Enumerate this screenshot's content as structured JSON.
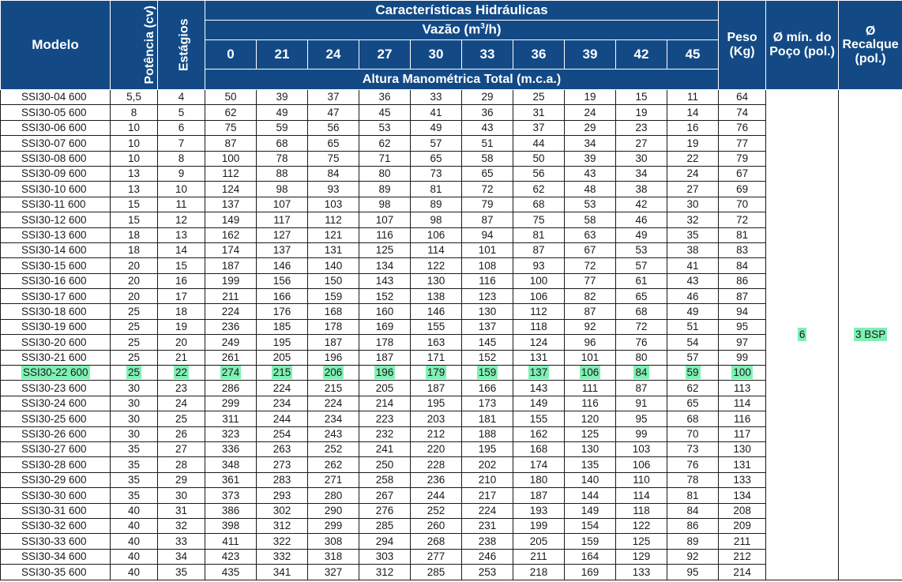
{
  "header": {
    "model": "Modelo",
    "power": "Potência (cv)",
    "stages": "Estágios",
    "hydraulic": "Características Hidráulicas",
    "flow_prefix": "Vazão (m",
    "flow_sup": "3",
    "flow_suffix": "/h)",
    "flows": [
      "0",
      "21",
      "24",
      "27",
      "30",
      "33",
      "36",
      "39",
      "42",
      "45"
    ],
    "head": "Altura Manométrica Total (m.c.a.)",
    "weight_line1": "Peso",
    "weight_line2": "(Kg)",
    "well_line1": "Ø mín. do",
    "well_line2": "Poço (pol.)",
    "outlet_line1": "Ø",
    "outlet_line2": "Recalque",
    "outlet_line3": "(pol.)"
  },
  "merged": {
    "well_diameter": "6",
    "outlet": "3 BSP"
  },
  "highlight_model": "SSI30-22 600",
  "highlight_color": "#7ff0b4",
  "header_color": "#134a86",
  "rows": [
    [
      "SSI30-04 600",
      "5,5",
      "4",
      "50",
      "39",
      "37",
      "36",
      "33",
      "29",
      "25",
      "19",
      "15",
      "11",
      "64"
    ],
    [
      "SSI30-05 600",
      "8",
      "5",
      "62",
      "49",
      "47",
      "45",
      "41",
      "36",
      "31",
      "24",
      "19",
      "14",
      "74"
    ],
    [
      "SSI30-06 600",
      "10",
      "6",
      "75",
      "59",
      "56",
      "53",
      "49",
      "43",
      "37",
      "29",
      "23",
      "16",
      "76"
    ],
    [
      "SSI30-07 600",
      "10",
      "7",
      "87",
      "68",
      "65",
      "62",
      "57",
      "51",
      "44",
      "34",
      "27",
      "19",
      "77"
    ],
    [
      "SSI30-08 600",
      "10",
      "8",
      "100",
      "78",
      "75",
      "71",
      "65",
      "58",
      "50",
      "39",
      "30",
      "22",
      "79"
    ],
    [
      "SSI30-09 600",
      "13",
      "9",
      "112",
      "88",
      "84",
      "80",
      "73",
      "65",
      "56",
      "43",
      "34",
      "24",
      "67"
    ],
    [
      "SSI30-10 600",
      "13",
      "10",
      "124",
      "98",
      "93",
      "89",
      "81",
      "72",
      "62",
      "48",
      "38",
      "27",
      "69"
    ],
    [
      "SSI30-11 600",
      "15",
      "11",
      "137",
      "107",
      "103",
      "98",
      "89",
      "79",
      "68",
      "53",
      "42",
      "30",
      "70"
    ],
    [
      "SSI30-12 600",
      "15",
      "12",
      "149",
      "117",
      "112",
      "107",
      "98",
      "87",
      "75",
      "58",
      "46",
      "32",
      "72"
    ],
    [
      "SSI30-13 600",
      "18",
      "13",
      "162",
      "127",
      "121",
      "116",
      "106",
      "94",
      "81",
      "63",
      "49",
      "35",
      "81"
    ],
    [
      "SSI30-14 600",
      "18",
      "14",
      "174",
      "137",
      "131",
      "125",
      "114",
      "101",
      "87",
      "67",
      "53",
      "38",
      "83"
    ],
    [
      "SSI30-15 600",
      "20",
      "15",
      "187",
      "146",
      "140",
      "134",
      "122",
      "108",
      "93",
      "72",
      "57",
      "41",
      "84"
    ],
    [
      "SSI30-16 600",
      "20",
      "16",
      "199",
      "156",
      "150",
      "143",
      "130",
      "116",
      "100",
      "77",
      "61",
      "43",
      "86"
    ],
    [
      "SSI30-17 600",
      "20",
      "17",
      "211",
      "166",
      "159",
      "152",
      "138",
      "123",
      "106",
      "82",
      "65",
      "46",
      "87"
    ],
    [
      "SSI30-18 600",
      "25",
      "18",
      "224",
      "176",
      "168",
      "160",
      "146",
      "130",
      "112",
      "87",
      "68",
      "49",
      "94"
    ],
    [
      "SSI30-19 600",
      "25",
      "19",
      "236",
      "185",
      "178",
      "169",
      "155",
      "137",
      "118",
      "92",
      "72",
      "51",
      "95"
    ],
    [
      "SSI30-20 600",
      "25",
      "20",
      "249",
      "195",
      "187",
      "178",
      "163",
      "145",
      "124",
      "96",
      "76",
      "54",
      "97"
    ],
    [
      "SSI30-21 600",
      "25",
      "21",
      "261",
      "205",
      "196",
      "187",
      "171",
      "152",
      "131",
      "101",
      "80",
      "57",
      "99"
    ],
    [
      "SSI30-22 600",
      "25",
      "22",
      "274",
      "215",
      "206",
      "196",
      "179",
      "159",
      "137",
      "106",
      "84",
      "59",
      "100"
    ],
    [
      "SSI30-23 600",
      "30",
      "23",
      "286",
      "224",
      "215",
      "205",
      "187",
      "166",
      "143",
      "111",
      "87",
      "62",
      "113"
    ],
    [
      "SSI30-24 600",
      "30",
      "24",
      "299",
      "234",
      "224",
      "214",
      "195",
      "173",
      "149",
      "116",
      "91",
      "65",
      "114"
    ],
    [
      "SSI30-25 600",
      "30",
      "25",
      "311",
      "244",
      "234",
      "223",
      "203",
      "181",
      "155",
      "120",
      "95",
      "68",
      "116"
    ],
    [
      "SSI30-26 600",
      "30",
      "26",
      "323",
      "254",
      "243",
      "232",
      "212",
      "188",
      "162",
      "125",
      "99",
      "70",
      "117"
    ],
    [
      "SSI30-27 600",
      "35",
      "27",
      "336",
      "263",
      "252",
      "241",
      "220",
      "195",
      "168",
      "130",
      "103",
      "73",
      "130"
    ],
    [
      "SSI30-28 600",
      "35",
      "28",
      "348",
      "273",
      "262",
      "250",
      "228",
      "202",
      "174",
      "135",
      "106",
      "76",
      "131"
    ],
    [
      "SSI30-29 600",
      "35",
      "29",
      "361",
      "283",
      "271",
      "258",
      "236",
      "210",
      "180",
      "140",
      "110",
      "78",
      "133"
    ],
    [
      "SSI30-30 600",
      "35",
      "30",
      "373",
      "293",
      "280",
      "267",
      "244",
      "217",
      "187",
      "144",
      "114",
      "81",
      "134"
    ],
    [
      "SSI30-31 600",
      "40",
      "31",
      "386",
      "302",
      "290",
      "276",
      "252",
      "224",
      "193",
      "149",
      "118",
      "84",
      "208"
    ],
    [
      "SSI30-32 600",
      "40",
      "32",
      "398",
      "312",
      "299",
      "285",
      "260",
      "231",
      "199",
      "154",
      "122",
      "86",
      "209"
    ],
    [
      "SSI30-33 600",
      "40",
      "33",
      "411",
      "322",
      "308",
      "294",
      "268",
      "238",
      "205",
      "159",
      "125",
      "89",
      "211"
    ],
    [
      "SSI30-34 600",
      "40",
      "34",
      "423",
      "332",
      "318",
      "303",
      "277",
      "246",
      "211",
      "164",
      "129",
      "92",
      "212"
    ],
    [
      "SSI30-35 600",
      "40",
      "35",
      "435",
      "341",
      "327",
      "312",
      "285",
      "253",
      "218",
      "169",
      "133",
      "95",
      "214"
    ]
  ]
}
